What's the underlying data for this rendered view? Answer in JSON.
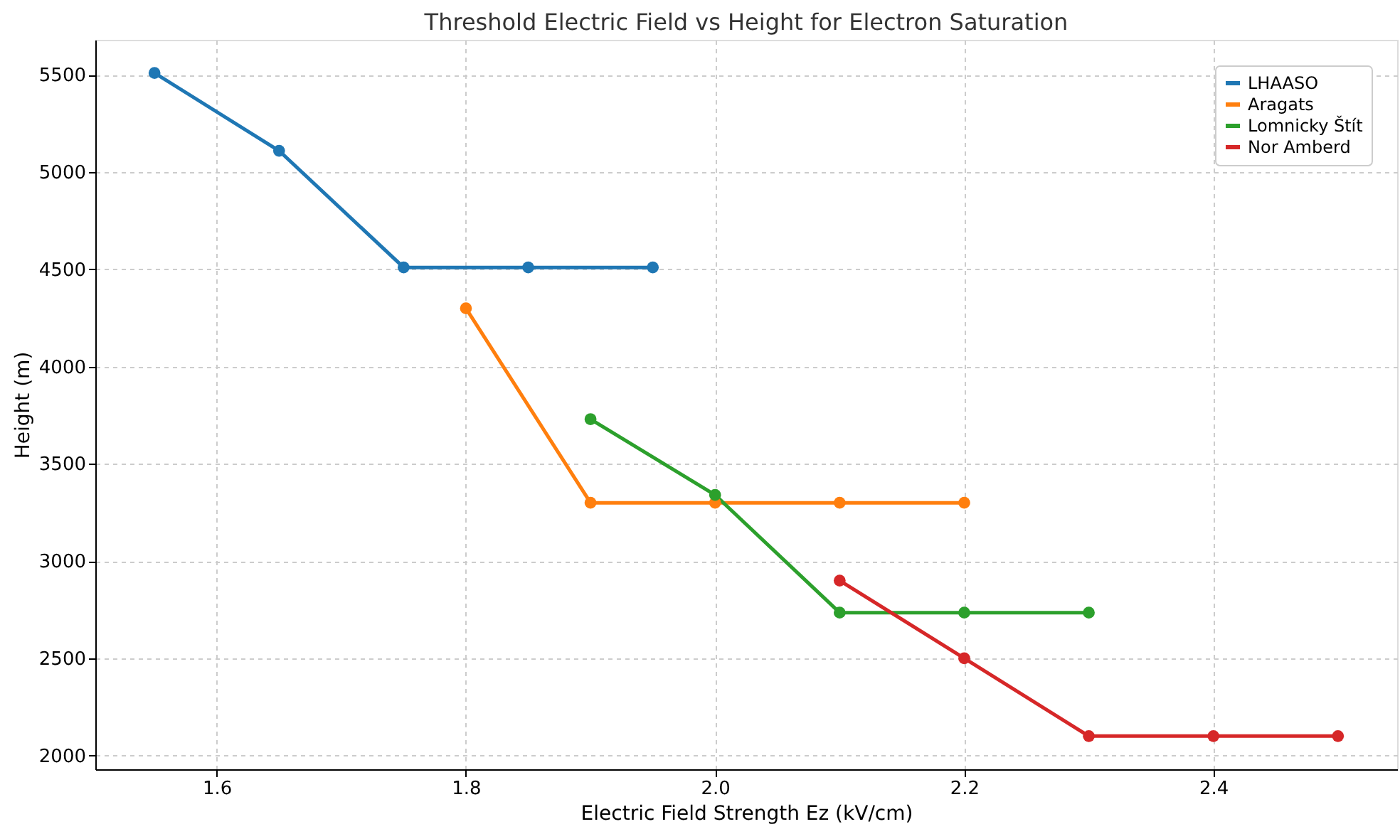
{
  "chart_data": {
    "type": "line",
    "title": "Threshold Electric Field vs Height for Electron Saturation",
    "xlabel": "Electric Field Strength Ez (kV/cm)",
    "ylabel": "Height (m)",
    "xlim": [
      1.5025,
      2.5475
    ],
    "ylim": [
      1929.5,
      5680.5
    ],
    "xticks": [
      1.6,
      1.8,
      {
        "value": 2,
        "label": "2.0"
      },
      2.2,
      2.4
    ],
    "yticks": [
      2000,
      2500,
      3000,
      3500,
      4000,
      4500,
      5000,
      5500
    ],
    "grid": true,
    "legend": "top right",
    "marker": "circle",
    "line_style": "solid",
    "series": [
      {
        "name": "LHAASO",
        "color": "#1f77b4",
        "x": [
          1.55,
          1.65,
          1.75,
          1.85,
          1.95
        ],
        "values": [
          5510,
          5110,
          4510,
          4510,
          4510
        ]
      },
      {
        "name": "Aragats",
        "color": "#ff7f0e",
        "x": [
          1.8,
          1.9,
          2.0,
          2.1,
          2.2
        ],
        "values": [
          4300,
          3300,
          3300,
          3300,
          3300
        ]
      },
      {
        "name": "Lomnicky Štít",
        "color": "#2ca02c",
        "x": [
          1.9,
          2.0,
          2.1,
          2.2,
          2.3
        ],
        "values": [
          3730,
          3340,
          2735,
          2735,
          2735
        ]
      },
      {
        "name": "Nor Amberd",
        "color": "#d62728",
        "x": [
          2.1,
          2.2,
          2.3,
          2.4,
          2.5
        ],
        "values": [
          2900,
          2500,
          2100,
          2100,
          2100
        ]
      }
    ]
  }
}
